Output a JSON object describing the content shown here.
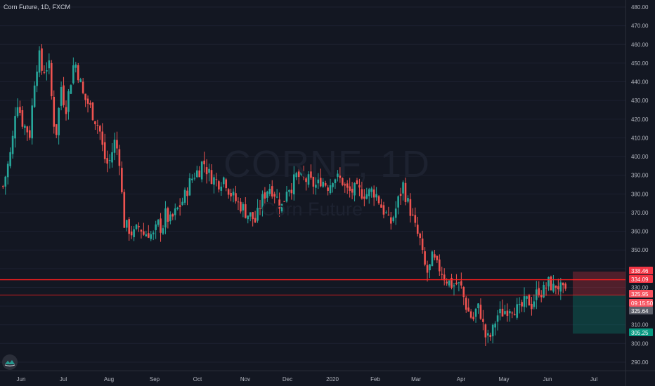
{
  "header": {
    "title": "Corn Future, 1D, FXCM"
  },
  "watermark": {
    "symbol": "CORNF, 1D",
    "name": "Corn Future"
  },
  "colors": {
    "bg": "#131722",
    "up": "#26a69a",
    "down": "#ef5350",
    "line": "#ff1f1f",
    "grid": "#1c2030"
  },
  "price_tags": [
    {
      "label": "338.46",
      "value": 338.46,
      "color": "#f23645"
    },
    {
      "label": "334.09",
      "value": 334.09,
      "color": "#f23645"
    },
    {
      "label": "325.95",
      "value": 325.95,
      "color": "#f7525f"
    },
    {
      "label": "09:15:50",
      "value": 322.6,
      "color": "#f7525f"
    },
    {
      "label": "325.64",
      "value": 318.2,
      "color": "#5d606b"
    },
    {
      "label": "305.25",
      "value": 305.25,
      "color": "#089981"
    }
  ],
  "chart_data": {
    "type": "candlestick",
    "title": "Corn Future, 1D, FXCM",
    "ylim": [
      280,
      483
    ],
    "y_ticks": [
      290,
      300,
      310,
      320,
      330,
      340,
      350,
      360,
      370,
      380,
      390,
      400,
      410,
      420,
      430,
      440,
      450,
      460,
      470,
      480
    ],
    "y_tick_labels": [
      "290.00",
      "300.00",
      "310.00",
      "320.00",
      "330.00",
      "340.00",
      "350.00",
      "360.00",
      "370.00",
      "380.00",
      "390.00",
      "400.00",
      "410.00",
      "420.00",
      "430.00",
      "440.00",
      "450.00",
      "460.00",
      "470.00",
      "480.00"
    ],
    "x_labels": [
      "Jun",
      "Jul",
      "Aug",
      "Sep",
      "Oct",
      "Nov",
      "Dec",
      "2020",
      "Feb",
      "Mar",
      "Apr",
      "May",
      "Jun",
      "Jul"
    ],
    "x_label_positions": [
      0.5,
      5,
      10,
      14.8,
      19.7,
      24.9,
      29.5,
      34.1,
      39,
      43.6,
      48.7,
      53.8,
      58.5,
      63.6
    ],
    "horizontal_lines": [
      334.09,
      325.95
    ],
    "position_box": {
      "x_start": 61.5,
      "x_end": 67,
      "entry": 325.95,
      "stop": 338.46,
      "target": 305.25
    },
    "path": [
      [
        0,
        384
      ],
      [
        1,
        405
      ],
      [
        1.5,
        432
      ],
      [
        2.2,
        418
      ],
      [
        3,
        412
      ],
      [
        3.5,
        440
      ],
      [
        4,
        455
      ],
      [
        4.4,
        445
      ],
      [
        4.8,
        448
      ],
      [
        5.2,
        448
      ],
      [
        5.6,
        420
      ],
      [
        6,
        413
      ],
      [
        6.5,
        438
      ],
      [
        7,
        425
      ],
      [
        7.5,
        438
      ],
      [
        8,
        452
      ],
      [
        8.6,
        441
      ],
      [
        9,
        432
      ],
      [
        9.6,
        428
      ],
      [
        10.3,
        420
      ],
      [
        10.8,
        415
      ],
      [
        11.3,
        400
      ],
      [
        11.8,
        395
      ],
      [
        12.5,
        408
      ],
      [
        13,
        401
      ],
      [
        13.3,
        380
      ],
      [
        13.6,
        363
      ],
      [
        14,
        362
      ],
      [
        14.6,
        358
      ],
      [
        15.3,
        363
      ],
      [
        15.8,
        358
      ],
      [
        16.2,
        360
      ],
      [
        16.8,
        357
      ],
      [
        17.4,
        364
      ],
      [
        17.8,
        361
      ],
      [
        18.2,
        369
      ],
      [
        18.7,
        365
      ],
      [
        19.2,
        369
      ],
      [
        19.7,
        373
      ],
      [
        20.2,
        377
      ],
      [
        21,
        387
      ],
      [
        21.5,
        391
      ],
      [
        22,
        393
      ],
      [
        22.4,
        398
      ],
      [
        23,
        391
      ],
      [
        23.6,
        388
      ],
      [
        24.1,
        386
      ],
      [
        24.8,
        389
      ],
      [
        25.3,
        382
      ],
      [
        25.8,
        378
      ],
      [
        26.3,
        375
      ],
      [
        26.8,
        373
      ],
      [
        27.2,
        370
      ],
      [
        27.8,
        368
      ],
      [
        28.3,
        365
      ],
      [
        28.8,
        374
      ],
      [
        29.4,
        381
      ],
      [
        29.8,
        384
      ],
      [
        30.3,
        382
      ],
      [
        30.8,
        376
      ],
      [
        31.3,
        373
      ],
      [
        31.8,
        384
      ],
      [
        32.3,
        384
      ],
      [
        32.9,
        390
      ],
      [
        33.4,
        388
      ],
      [
        34.2,
        387
      ],
      [
        34.8,
        385
      ],
      [
        35.2,
        384
      ],
      [
        35.6,
        388
      ],
      [
        36,
        386
      ],
      [
        36.5,
        384
      ],
      [
        37,
        390
      ],
      [
        37.5,
        388
      ],
      [
        38,
        387
      ],
      [
        38.4,
        382
      ],
      [
        38.8,
        381
      ],
      [
        39.4,
        382
      ],
      [
        40,
        381
      ],
      [
        40.8,
        380
      ],
      [
        41.4,
        382
      ],
      [
        41.9,
        379
      ],
      [
        42.4,
        373
      ],
      [
        42.9,
        369
      ],
      [
        43.3,
        363
      ],
      [
        43.8,
        369
      ],
      [
        44.3,
        377
      ],
      [
        44.8,
        385
      ],
      [
        45.2,
        377
      ],
      [
        45.7,
        370
      ],
      [
        46.2,
        361
      ],
      [
        46.7,
        355
      ],
      [
        47.1,
        343
      ],
      [
        47.6,
        337
      ],
      [
        48.1,
        346
      ],
      [
        48.6,
        341
      ],
      [
        49,
        340
      ],
      [
        49.4,
        336
      ],
      [
        49.9,
        333
      ],
      [
        50.4,
        331
      ],
      [
        50.8,
        332
      ],
      [
        51.3,
        330
      ],
      [
        51.8,
        321
      ],
      [
        52.3,
        315
      ],
      [
        52.7,
        313
      ],
      [
        53.1,
        320
      ],
      [
        53.5,
        316
      ],
      [
        54,
        304
      ],
      [
        54.4,
        302
      ],
      [
        54.8,
        306
      ],
      [
        55.3,
        315
      ],
      [
        55.8,
        316
      ],
      [
        56.3,
        318
      ],
      [
        56.8,
        320
      ],
      [
        57.3,
        319
      ],
      [
        57.8,
        317
      ],
      [
        58.3,
        321
      ],
      [
        58.8,
        323
      ],
      [
        59.2,
        321
      ],
      [
        59.6,
        325
      ],
      [
        60,
        329
      ],
      [
        60.4,
        327
      ],
      [
        60.8,
        330
      ],
      [
        61.2,
        333
      ],
      [
        61.6,
        329
      ],
      [
        62,
        332
      ],
      [
        62.6,
        328
      ],
      [
        63,
        326
      ]
    ]
  }
}
